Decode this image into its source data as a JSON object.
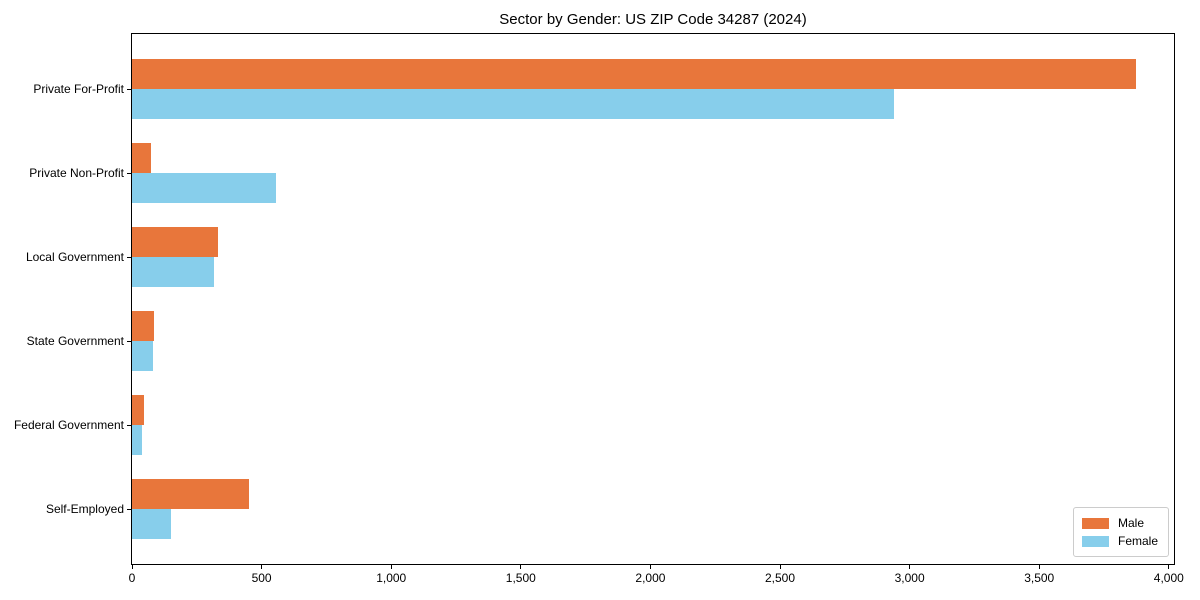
{
  "page": {
    "background_color": "#ffffff",
    "axis_color": "#000000"
  },
  "chart_data": {
    "type": "bar",
    "orientation": "horizontal",
    "title": "Sector by Gender: US ZIP Code 34287 (2024)",
    "xlabel": "",
    "ylabel": "",
    "grid": false,
    "categories": [
      "Private For-Profit",
      "Private Non-Profit",
      "Local Government",
      "State Government",
      "Federal Government",
      "Self-Employed"
    ],
    "series": [
      {
        "name": "Male",
        "color": "#e8763b",
        "values": [
          3875,
          75,
          330,
          85,
          45,
          450
        ]
      },
      {
        "name": "Female",
        "color": "#87ceeb",
        "values": [
          2940,
          555,
          315,
          80,
          40,
          150
        ]
      }
    ],
    "xlim": [
      0,
      4020
    ],
    "x_ticks": [
      {
        "value": 0,
        "label": "0"
      },
      {
        "value": 500,
        "label": "500"
      },
      {
        "value": 1000,
        "label": "1,000"
      },
      {
        "value": 1500,
        "label": "1,500"
      },
      {
        "value": 2000,
        "label": "2,000"
      },
      {
        "value": 2500,
        "label": "2,500"
      },
      {
        "value": 3000,
        "label": "3,000"
      },
      {
        "value": 3500,
        "label": "3,500"
      },
      {
        "value": 4000,
        "label": "4,000"
      }
    ],
    "legend": {
      "position": "lower right",
      "entries": [
        "Male",
        "Female"
      ]
    }
  }
}
